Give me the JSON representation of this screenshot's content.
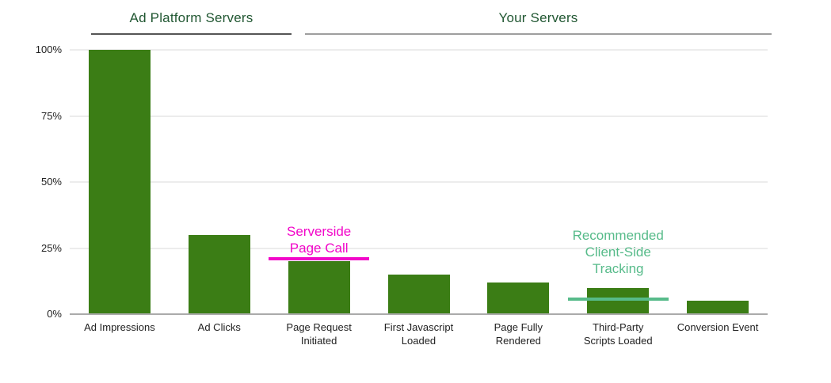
{
  "page": {
    "background": "#FFFFFF"
  },
  "chart_data": {
    "type": "bar",
    "title": "",
    "group_headers": [
      {
        "label": "Ad Platform Servers",
        "text_color": "#215732",
        "underline_color": "#555555"
      },
      {
        "label": "Your Servers",
        "text_color": "#215732",
        "underline_color": "#9E9E9E"
      }
    ],
    "categories": [
      "Ad Impressions",
      "Ad Clicks",
      "Page Request\nInitiated",
      "First Javascript\nLoaded",
      "Page Fully\nRendered",
      "Third-Party\nScripts Loaded",
      "Conversion Event"
    ],
    "values": [
      100,
      30,
      20,
      15,
      12,
      10,
      5
    ],
    "unit": "%",
    "bar_color": "#3B7D15",
    "y_ticks": [
      "0%",
      "25%",
      "50%",
      "75%",
      "100%"
    ],
    "y_tick_values": [
      0,
      25,
      50,
      75,
      100
    ],
    "ylim": [
      0,
      100
    ],
    "grid": true,
    "gridline_color": "#ECECEC",
    "axis_line_color": "#ABABAB",
    "tick_label_color": "#222222",
    "annotations": [
      {
        "id": "serverside-page-call",
        "text": "Serverside\nPage Call",
        "color": "#F206C9",
        "bar_index": 2,
        "line_level_pct": 21,
        "text_bottom_level_pct": 22
      },
      {
        "id": "recommended-client-side-tracking",
        "text": "Recommended\nClient-Side\nTracking",
        "color": "#57BB8A",
        "bar_index": 5,
        "line_level_pct": 5.8,
        "text_bottom_level_pct": 14
      }
    ]
  }
}
